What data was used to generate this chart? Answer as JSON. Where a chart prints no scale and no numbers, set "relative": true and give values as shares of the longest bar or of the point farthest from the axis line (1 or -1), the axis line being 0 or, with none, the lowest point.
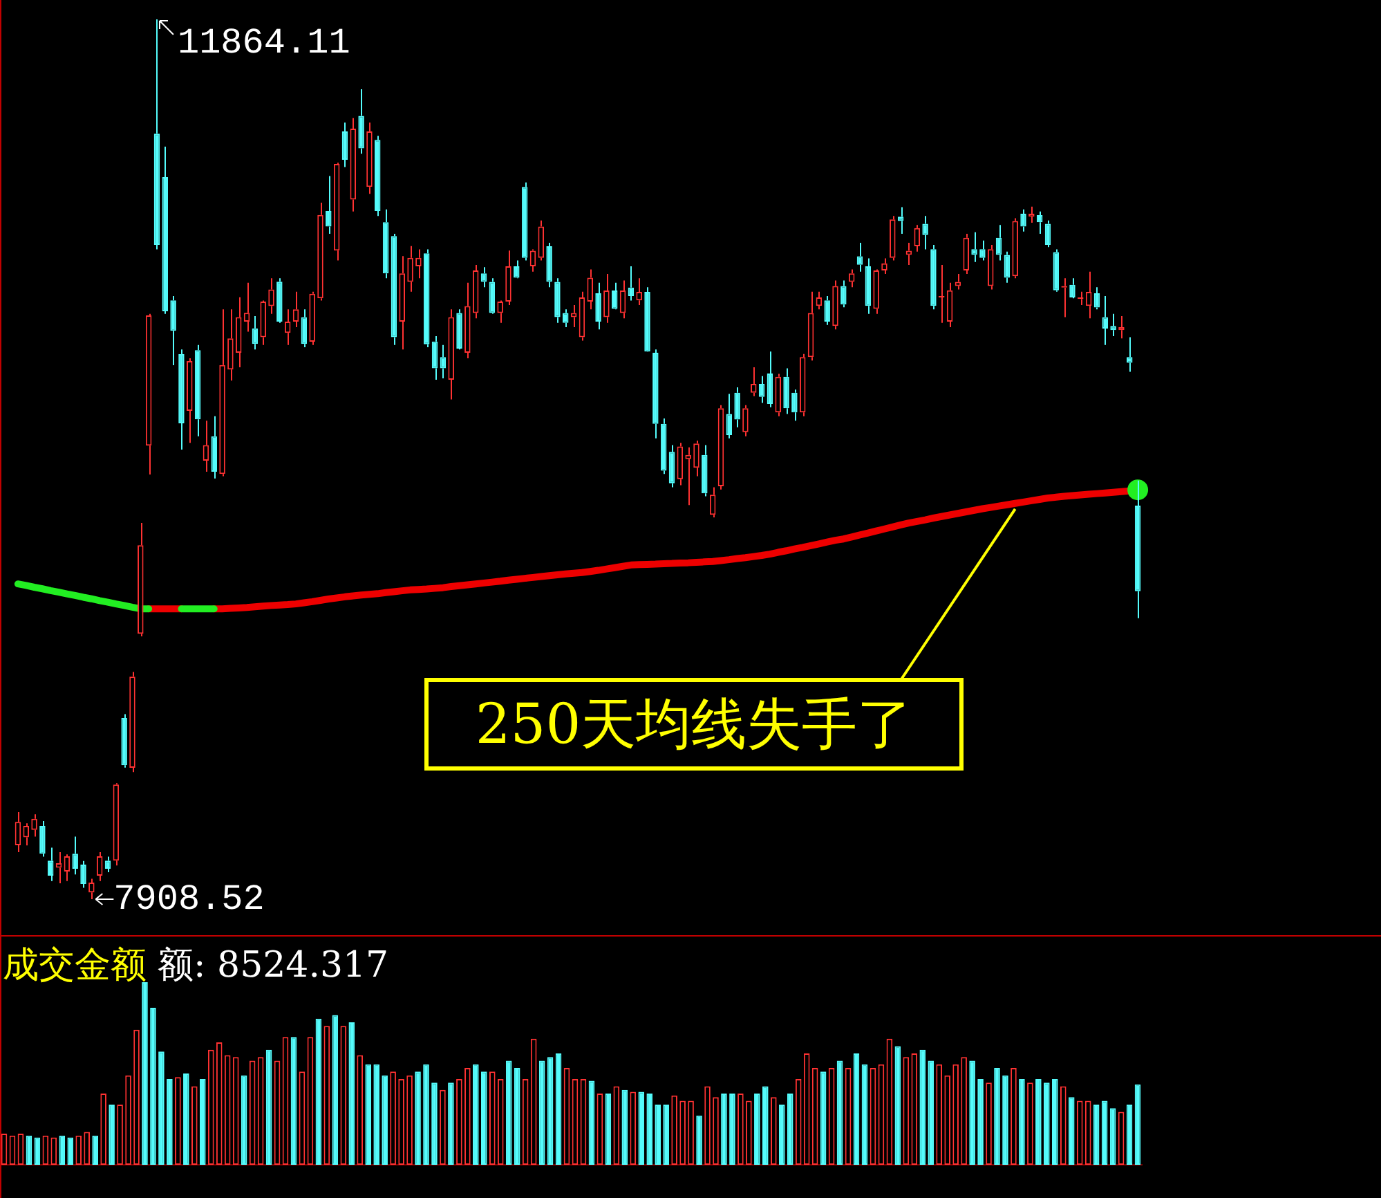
{
  "chart_data": [
    {
      "type": "candlestick",
      "tick_labels": false,
      "categories": [
        null,
        null,
        null,
        null,
        null,
        null,
        null,
        null,
        null,
        null,
        null,
        null,
        null,
        null,
        null,
        null,
        null,
        null,
        null,
        null,
        null,
        null,
        null,
        null,
        null,
        null,
        null,
        null,
        null,
        null,
        null,
        null,
        null,
        null,
        null,
        null,
        null,
        null,
        null,
        null,
        null,
        null,
        null,
        null,
        null,
        null,
        null,
        null,
        null,
        null,
        null,
        null,
        null,
        null,
        null,
        null,
        null,
        null,
        null,
        null,
        null,
        null,
        null,
        null,
        null,
        null,
        null,
        null,
        null,
        null,
        null,
        null,
        null,
        null,
        null,
        null,
        null,
        null,
        null,
        null,
        null,
        null,
        null,
        null,
        null,
        null,
        null,
        null,
        null,
        null,
        null,
        null,
        null,
        null,
        null,
        null,
        null,
        null,
        null,
        null,
        null,
        null,
        null,
        null,
        null,
        null,
        null,
        null,
        null,
        null,
        null,
        null,
        null,
        null,
        null,
        null,
        null,
        null,
        null,
        null,
        null,
        null,
        null,
        null,
        null,
        null,
        null,
        null,
        null,
        null,
        null,
        null,
        null,
        null,
        null,
        null,
        null,
        null
      ],
      "ohlc": [
        [
          8151,
          8300,
          8120,
          8256
        ],
        [
          8187,
          8250,
          8150,
          8238
        ],
        [
          8220,
          8290,
          8190,
          8270
        ],
        [
          8238,
          8260,
          8100,
          8113
        ],
        [
          8082,
          8140,
          7990,
          8014
        ],
        [
          8050,
          8120,
          7980,
          8070
        ],
        [
          8033,
          8110,
          7990,
          8101
        ],
        [
          8113,
          8190,
          8020,
          8045
        ],
        [
          8064,
          8080,
          7960,
          7977
        ],
        [
          7939,
          8000,
          7908.52,
          7983
        ],
        [
          8014,
          8120,
          7990,
          8101
        ],
        [
          8082,
          8100,
          8030,
          8045
        ],
        [
          8082,
          8430,
          8060,
          8424
        ],
        [
          8723,
          8740,
          8500,
          8511
        ],
        [
          8499,
          8930,
          8480,
          8909
        ],
        [
          9102,
          9600,
          9090,
          9500
        ],
        [
          9948,
          10540,
          9818,
          10533
        ],
        [
          11350,
          11864.11,
          10830,
          10850
        ],
        [
          11155,
          11292,
          10540,
          10552
        ],
        [
          10601,
          10620,
          10309,
          10464
        ],
        [
          10359,
          10380,
          9930,
          10048
        ],
        [
          10104,
          10340,
          9960,
          10328
        ],
        [
          10377,
          10400,
          9990,
          10066
        ],
        [
          9880,
          10060,
          9830,
          9950
        ],
        [
          9990,
          10080,
          9800,
          9830
        ],
        [
          9820,
          10560,
          9810,
          10310
        ],
        [
          10290,
          10560,
          10240,
          10430
        ],
        [
          10365,
          10615,
          10300,
          10525
        ],
        [
          10505,
          10680,
          10460,
          10545
        ],
        [
          10475,
          10530,
          10380,
          10405
        ],
        [
          10435,
          10600,
          10400,
          10595
        ],
        [
          10575,
          10700,
          10540,
          10650
        ],
        [
          10685,
          10700,
          10500,
          10505
        ],
        [
          10455,
          10560,
          10400,
          10505
        ],
        [
          10505,
          10640,
          10480,
          10560
        ],
        [
          10525,
          10560,
          10390,
          10405
        ],
        [
          10415,
          10640,
          10400,
          10630
        ],
        [
          10610,
          11040,
          10600,
          10985
        ],
        [
          11003,
          11160,
          10900,
          10933
        ],
        [
          10825,
          11220,
          10780,
          11214
        ],
        [
          11360,
          11400,
          11200,
          11233
        ],
        [
          11054,
          11420,
          11000,
          11373
        ],
        [
          11430,
          11550,
          11260,
          11284
        ],
        [
          11111,
          11400,
          11080,
          11360
        ],
        [
          11322,
          11340,
          10980,
          11003
        ],
        [
          10952,
          11010,
          10700,
          10722
        ],
        [
          10890,
          10900,
          10400,
          10435
        ],
        [
          10505,
          10800,
          10380,
          10722
        ],
        [
          10684,
          10845,
          10640,
          10792
        ],
        [
          10754,
          10830,
          10700,
          10792
        ],
        [
          10812,
          10830,
          10390,
          10403
        ],
        [
          10416,
          10440,
          10244,
          10295
        ],
        [
          10346,
          10400,
          10250,
          10295
        ],
        [
          10244,
          10560,
          10155,
          10525
        ],
        [
          10544,
          10560,
          10380,
          10384
        ],
        [
          10365,
          10680,
          10340,
          10575
        ],
        [
          10544,
          10760,
          10520,
          10735
        ],
        [
          10722,
          10750,
          10660,
          10684
        ],
        [
          10684,
          10700,
          10540,
          10544
        ],
        [
          10544,
          10600,
          10500,
          10595
        ],
        [
          10595,
          10825,
          10580,
          10754
        ],
        [
          10754,
          10780,
          10700,
          10703
        ],
        [
          11111,
          11131,
          10780,
          10792
        ],
        [
          10754,
          10830,
          10730,
          10824
        ],
        [
          10792,
          10960,
          10780,
          10933
        ],
        [
          10844,
          10860,
          10660,
          10684
        ],
        [
          10684,
          10700,
          10500,
          10525
        ],
        [
          10544,
          10560,
          10480,
          10500
        ],
        [
          10525,
          10580,
          10480,
          10544
        ],
        [
          10435,
          10640,
          10420,
          10614
        ],
        [
          10595,
          10740,
          10560,
          10703
        ],
        [
          10633,
          10680,
          10470,
          10505
        ],
        [
          10525,
          10720,
          10500,
          10645
        ],
        [
          10645,
          10680,
          10560,
          10563
        ],
        [
          10544,
          10690,
          10520,
          10645
        ],
        [
          10658,
          10754,
          10600,
          10620
        ],
        [
          10601,
          10700,
          10580,
          10639
        ],
        [
          10639,
          10660,
          10370,
          10371
        ],
        [
          10365,
          10380,
          9980,
          10046
        ],
        [
          10046,
          10070,
          9820,
          9835
        ],
        [
          9920,
          9950,
          9760,
          9778
        ],
        [
          9797,
          9960,
          9770,
          9944
        ],
        [
          9887,
          9940,
          9680,
          9906
        ],
        [
          9848,
          9970,
          9810,
          9957
        ],
        [
          9906,
          9950,
          9720,
          9733
        ],
        [
          9637,
          9760,
          9625,
          9727
        ],
        [
          9765,
          10130,
          9750,
          10116
        ],
        [
          10090,
          10180,
          9980,
          9995
        ],
        [
          10186,
          10210,
          10030,
          10065
        ],
        [
          10008,
          10130,
          9990,
          10116
        ],
        [
          10186,
          10300,
          10170,
          10225
        ],
        [
          10225,
          10260,
          10140,
          10167
        ],
        [
          10272,
          10371,
          10120,
          10135
        ],
        [
          10097,
          10270,
          10080,
          10257
        ],
        [
          10257,
          10295,
          10090,
          10116
        ],
        [
          10186,
          10200,
          10060,
          10097
        ],
        [
          10097,
          10360,
          10080,
          10346
        ],
        [
          10346,
          10640,
          10330,
          10544
        ],
        [
          10576,
          10640,
          10560,
          10614
        ],
        [
          10601,
          10620,
          10490,
          10505
        ],
        [
          10486,
          10690,
          10470,
          10665
        ],
        [
          10665,
          10690,
          10570,
          10582
        ],
        [
          10684,
          10740,
          10660,
          10722
        ],
        [
          10799,
          10860,
          10730,
          10761
        ],
        [
          10754,
          10790,
          10540,
          10576
        ],
        [
          10563,
          10740,
          10540,
          10735
        ],
        [
          10735,
          10790,
          10720,
          10767
        ],
        [
          10792,
          10980,
          10780,
          10965
        ],
        [
          10977,
          11020,
          10900,
          10958
        ],
        [
          10805,
          10860,
          10760,
          10824
        ],
        [
          10844,
          10940,
          10820,
          10926
        ],
        [
          10945,
          10980,
          10830,
          10895
        ],
        [
          10831,
          10850,
          10560,
          10576
        ],
        [
          10614,
          10760,
          10500,
          10620
        ],
        [
          10505,
          10680,
          10480,
          10646
        ],
        [
          10665,
          10720,
          10650,
          10684
        ],
        [
          10735,
          10900,
          10720,
          10882
        ],
        [
          10831,
          10907,
          10773,
          10805
        ],
        [
          10831,
          10870,
          10780,
          10792
        ],
        [
          10665,
          10850,
          10650,
          10831
        ],
        [
          10882,
          10940,
          10780,
          10805
        ],
        [
          10805,
          10820,
          10680,
          10703
        ],
        [
          10710,
          10970,
          10700,
          10958
        ],
        [
          10990,
          11010,
          10910,
          10933
        ],
        [
          10977,
          11022,
          10950,
          10990
        ],
        [
          10984,
          11000,
          10900,
          10952
        ],
        [
          10945,
          10960,
          10840,
          10850
        ],
        [
          10818,
          10830,
          10640,
          10646
        ],
        [
          10658,
          10700,
          10525,
          10665
        ],
        [
          10671,
          10700,
          10610,
          10614
        ],
        [
          10607,
          10640,
          10580,
          10614
        ],
        [
          10576,
          10730,
          10520,
          10639
        ],
        [
          10633,
          10660,
          10560,
          10569
        ],
        [
          10525,
          10620,
          10400,
          10474
        ],
        [
          10486,
          10540,
          10440,
          10467
        ],
        [
          10467,
          10530,
          10430,
          10480
        ],
        [
          10346,
          10435,
          10280,
          10320
        ],
        [
          9678,
          9791,
          9172,
          9293
        ]
      ],
      "colors": [
        "#ff3232",
        "#ff3232",
        "#ff3232",
        "#54fcfc",
        "#54fcfc",
        "#ff3232",
        "#ff3232",
        "#54fcfc",
        "#54fcfc",
        "#ff3232",
        "#ff3232",
        "#54fcfc",
        "#ff3232",
        "#54fcfc",
        "#ff3232",
        "#ff3232",
        "#ff3232",
        "#54fcfc",
        "#54fcfc",
        "#54fcfc",
        "#54fcfc",
        "#ff3232",
        "#54fcfc",
        "#ff3232",
        "#54fcfc",
        "#ff3232",
        "#ff3232",
        "#ff3232",
        "#ff3232",
        "#54fcfc",
        "#ff3232",
        "#ff3232",
        "#54fcfc",
        "#ff3232",
        "#ff3232",
        "#54fcfc",
        "#ff3232",
        "#ff3232",
        "#54fcfc",
        "#ff3232",
        "#54fcfc",
        "#ff3232",
        "#54fcfc",
        "#ff3232",
        "#54fcfc",
        "#54fcfc",
        "#54fcfc",
        "#ff3232",
        "#ff3232",
        "#ff3232",
        "#54fcfc",
        "#54fcfc",
        "#54fcfc",
        "#ff3232",
        "#54fcfc",
        "#ff3232",
        "#ff3232",
        "#54fcfc",
        "#54fcfc",
        "#ff3232",
        "#ff3232",
        "#54fcfc",
        "#54fcfc",
        "#ff3232",
        "#ff3232",
        "#54fcfc",
        "#54fcfc",
        "#54fcfc",
        "#ff3232",
        "#ff3232",
        "#ff3232",
        "#54fcfc",
        "#ff3232",
        "#54fcfc",
        "#ff3232",
        "#54fcfc",
        "#ff3232",
        "#54fcfc",
        "#54fcfc",
        "#54fcfc",
        "#54fcfc",
        "#ff3232",
        "#ff3232",
        "#ff3232",
        "#54fcfc",
        "#ff3232",
        "#ff3232",
        "#54fcfc",
        "#54fcfc",
        "#ff3232",
        "#ff3232",
        "#54fcfc",
        "#54fcfc",
        "#ff3232",
        "#54fcfc",
        "#54fcfc",
        "#ff3232",
        "#ff3232",
        "#ff3232",
        "#54fcfc",
        "#ff3232",
        "#54fcfc",
        "#ff3232",
        "#54fcfc",
        "#54fcfc",
        "#ff3232",
        "#ff3232",
        "#ff3232",
        "#54fcfc",
        "#ff3232",
        "#ff3232",
        "#54fcfc",
        "#54fcfc",
        "#ff3232",
        "#ff3232",
        "#ff3232",
        "#ff3232",
        "#54fcfc",
        "#54fcfc",
        "#ff3232",
        "#54fcfc",
        "#54fcfc",
        "#ff3232",
        "#54fcfc",
        "#ff3232",
        "#54fcfc",
        "#54fcfc",
        "#54fcfc",
        "#ff3232",
        "#54fcfc",
        "#ff3232",
        "#ff3232",
        "#54fcfc",
        "#54fcfc",
        "#54fcfc",
        "#ff3232",
        "#54fcfc",
        "#54fcfc"
      ],
      "series": [
        {
          "type": "line",
          "color": "#ee0000",
          "values": [
            null,
            null,
            null,
            null,
            null,
            null,
            null,
            null,
            null,
            null,
            null,
            null,
            null,
            null,
            null,
            null,
            9214,
            9214,
            9214,
            9214,
            9214,
            null,
            null,
            null,
            9214,
            9214,
            9216,
            9218,
            9220,
            9223,
            9226,
            9229,
            9231,
            9233,
            9236,
            9241,
            9246,
            9252,
            9258,
            9263,
            9268,
            9272,
            9276,
            9279,
            9282,
            9287,
            9291,
            9295,
            9299,
            9301,
            9303,
            9306,
            9309,
            9314,
            9318,
            9322,
            9326,
            9330,
            9334,
            9338,
            9343,
            9347,
            9351,
            9355,
            9359,
            9363,
            9367,
            9371,
            9374,
            9377,
            9382,
            9387,
            9393,
            9399,
            9405,
            9411,
            9413,
            9414,
            9415,
            9417,
            9418,
            9420,
            9421,
            9423,
            9425,
            9427,
            9431,
            9435,
            9440,
            9444,
            9449,
            9454,
            9460,
            9468,
            9475,
            9483,
            9490,
            9498,
            9506,
            9514,
            9522,
            9528,
            9537,
            9546,
            9555,
            9564,
            9573,
            9582,
            9591,
            9600,
            9607,
            9614,
            9622,
            9629,
            9636,
            9643,
            9650,
            9657,
            9664,
            9670,
            9676,
            9682,
            9688,
            9694,
            9700,
            9706,
            9712,
            9716,
            9720,
            9723,
            9726,
            9729,
            9732,
            9735,
            9738,
            9741,
            9744,
            null
          ]
        },
        {
          "type": "line",
          "color": "#22ee22",
          "values": [
            9326,
            9319,
            9311,
            9304,
            9296,
            9289,
            9281,
            9274,
            9266,
            9259,
            9251,
            9244,
            9236,
            9229,
            9221,
            9214,
            9214,
            null,
            null,
            null,
            9214,
            9214,
            9214,
            9214,
            9214,
            null,
            null,
            null,
            null,
            null,
            null,
            null,
            null,
            null,
            null,
            null,
            null,
            null,
            null,
            null,
            null,
            null,
            null,
            null,
            null,
            null,
            null,
            null,
            null,
            null,
            null,
            null,
            null,
            null,
            null,
            null,
            null,
            null,
            null,
            null,
            null,
            null,
            null,
            null,
            null,
            null,
            null,
            null,
            null,
            null,
            null,
            null,
            null,
            null,
            null,
            null,
            null,
            null,
            null,
            null,
            null,
            null,
            null,
            null,
            null,
            null,
            null,
            null,
            null,
            null,
            null,
            null,
            null,
            null,
            null,
            null,
            null,
            null,
            null,
            null,
            null,
            null,
            null,
            null,
            null,
            null,
            null,
            null,
            null,
            null,
            null,
            null,
            null,
            null,
            null,
            null,
            null,
            null,
            null,
            null,
            null,
            null,
            null,
            null,
            null,
            null,
            null,
            null,
            null,
            null,
            null,
            null,
            null,
            null,
            null,
            null,
            null,
            9749
          ]
        }
      ],
      "annotations": [
        "11864.11",
        "7908.52",
        "250天均线失手了"
      ]
    },
    {
      "type": "bar",
      "relative": true,
      "tick_labels": false,
      "title": "成交金额",
      "annotations": [
        "额: 8524.317"
      ],
      "categories": [
        null,
        null,
        null,
        null,
        null,
        null,
        null,
        null,
        null,
        null,
        null,
        null,
        null,
        null,
        null,
        null,
        null,
        null,
        null,
        null,
        null,
        null,
        null,
        null,
        null,
        null,
        null,
        null,
        null,
        null,
        null,
        null,
        null,
        null,
        null,
        null,
        null,
        null,
        null,
        null,
        null,
        null,
        null,
        null,
        null,
        null,
        null,
        null,
        null,
        null,
        null,
        null,
        null,
        null,
        null,
        null,
        null,
        null,
        null,
        null,
        null,
        null,
        null,
        null,
        null,
        null,
        null,
        null,
        null,
        null,
        null,
        null,
        null,
        null,
        null,
        null,
        null,
        null,
        null,
        null,
        null,
        null,
        null,
        null,
        null,
        null,
        null,
        null,
        null,
        null,
        null,
        null,
        null,
        null,
        null,
        null,
        null,
        null,
        null,
        null,
        null,
        null,
        null,
        null,
        null,
        null,
        null,
        null,
        null,
        null,
        null,
        null,
        null,
        null,
        null,
        null,
        null,
        null,
        null,
        null,
        null,
        null,
        null,
        null,
        null,
        null,
        null,
        null,
        null,
        null,
        null,
        null,
        null,
        null,
        null,
        null,
        null,
        null
      ],
      "values": [
        0.17,
        0.16,
        0.17,
        0.16,
        0.15,
        0.16,
        0.15,
        0.16,
        0.15,
        0.16,
        0.18,
        0.16,
        0.39,
        0.33,
        0.33,
        0.49,
        0.74,
        1,
        0.86,
        0.62,
        0.47,
        0.48,
        0.5,
        0.43,
        0.47,
        0.63,
        0.67,
        0.6,
        0.59,
        0.49,
        0.57,
        0.59,
        0.63,
        0.57,
        0.7,
        0.7,
        0.51,
        0.7,
        0.8,
        0.76,
        0.82,
        0.76,
        0.78,
        0.6,
        0.55,
        0.55,
        0.49,
        0.51,
        0.47,
        0.49,
        0.51,
        0.55,
        0.45,
        0.41,
        0.45,
        0.47,
        0.53,
        0.55,
        0.51,
        0.51,
        0.47,
        0.57,
        0.53,
        0.47,
        0.69,
        0.57,
        0.59,
        0.61,
        0.53,
        0.47,
        0.47,
        0.46,
        0.39,
        0.39,
        0.43,
        0.41,
        0.4,
        0.4,
        0.39,
        0.33,
        0.33,
        0.38,
        0.35,
        0.35,
        0.27,
        0.43,
        0.37,
        0.39,
        0.39,
        0.39,
        0.35,
        0.39,
        0.43,
        0.37,
        0.33,
        0.39,
        0.47,
        0.61,
        0.53,
        0.51,
        0.53,
        0.57,
        0.53,
        0.61,
        0.55,
        0.53,
        0.55,
        0.69,
        0.65,
        0.59,
        0.61,
        0.63,
        0.57,
        0.55,
        0.49,
        0.55,
        0.59,
        0.57,
        0.47,
        0.45,
        0.53,
        0.49,
        0.53,
        0.47,
        0.45,
        0.47,
        0.45,
        0.47,
        0.43,
        0.37,
        0.35,
        0.35,
        0.33,
        0.35,
        0.31,
        0.29,
        0.33,
        0.44
      ],
      "colors": [
        "#ff3232",
        "#ff3232",
        "#ff3232",
        "#54fcfc",
        "#54fcfc",
        "#ff3232",
        "#ff3232",
        "#54fcfc",
        "#54fcfc",
        "#ff3232",
        "#ff3232",
        "#54fcfc",
        "#ff3232",
        "#54fcfc",
        "#ff3232",
        "#ff3232",
        "#ff3232",
        "#54fcfc",
        "#54fcfc",
        "#54fcfc",
        "#54fcfc",
        "#ff3232",
        "#54fcfc",
        "#ff3232",
        "#54fcfc",
        "#ff3232",
        "#ff3232",
        "#ff3232",
        "#ff3232",
        "#54fcfc",
        "#ff3232",
        "#ff3232",
        "#54fcfc",
        "#ff3232",
        "#ff3232",
        "#54fcfc",
        "#ff3232",
        "#ff3232",
        "#54fcfc",
        "#ff3232",
        "#54fcfc",
        "#ff3232",
        "#54fcfc",
        "#ff3232",
        "#54fcfc",
        "#54fcfc",
        "#54fcfc",
        "#ff3232",
        "#ff3232",
        "#ff3232",
        "#54fcfc",
        "#54fcfc",
        "#54fcfc",
        "#ff3232",
        "#54fcfc",
        "#ff3232",
        "#ff3232",
        "#54fcfc",
        "#54fcfc",
        "#ff3232",
        "#ff3232",
        "#54fcfc",
        "#54fcfc",
        "#ff3232",
        "#ff3232",
        "#54fcfc",
        "#54fcfc",
        "#54fcfc",
        "#ff3232",
        "#ff3232",
        "#ff3232",
        "#54fcfc",
        "#ff3232",
        "#54fcfc",
        "#ff3232",
        "#54fcfc",
        "#ff3232",
        "#54fcfc",
        "#54fcfc",
        "#54fcfc",
        "#54fcfc",
        "#ff3232",
        "#ff3232",
        "#ff3232",
        "#54fcfc",
        "#ff3232",
        "#ff3232",
        "#54fcfc",
        "#54fcfc",
        "#ff3232",
        "#ff3232",
        "#54fcfc",
        "#54fcfc",
        "#ff3232",
        "#54fcfc",
        "#54fcfc",
        "#ff3232",
        "#ff3232",
        "#ff3232",
        "#54fcfc",
        "#ff3232",
        "#54fcfc",
        "#ff3232",
        "#54fcfc",
        "#54fcfc",
        "#ff3232",
        "#ff3232",
        "#ff3232",
        "#54fcfc",
        "#ff3232",
        "#ff3232",
        "#54fcfc",
        "#54fcfc",
        "#ff3232",
        "#ff3232",
        "#ff3232",
        "#ff3232",
        "#54fcfc",
        "#54fcfc",
        "#ff3232",
        "#54fcfc",
        "#54fcfc",
        "#ff3232",
        "#54fcfc",
        "#ff3232",
        "#54fcfc",
        "#54fcfc",
        "#54fcfc",
        "#ff3232",
        "#54fcfc",
        "#ff3232",
        "#ff3232",
        "#54fcfc",
        "#54fcfc",
        "#54fcfc",
        "#ff3232",
        "#54fcfc",
        "#54fcfc"
      ]
    }
  ]
}
